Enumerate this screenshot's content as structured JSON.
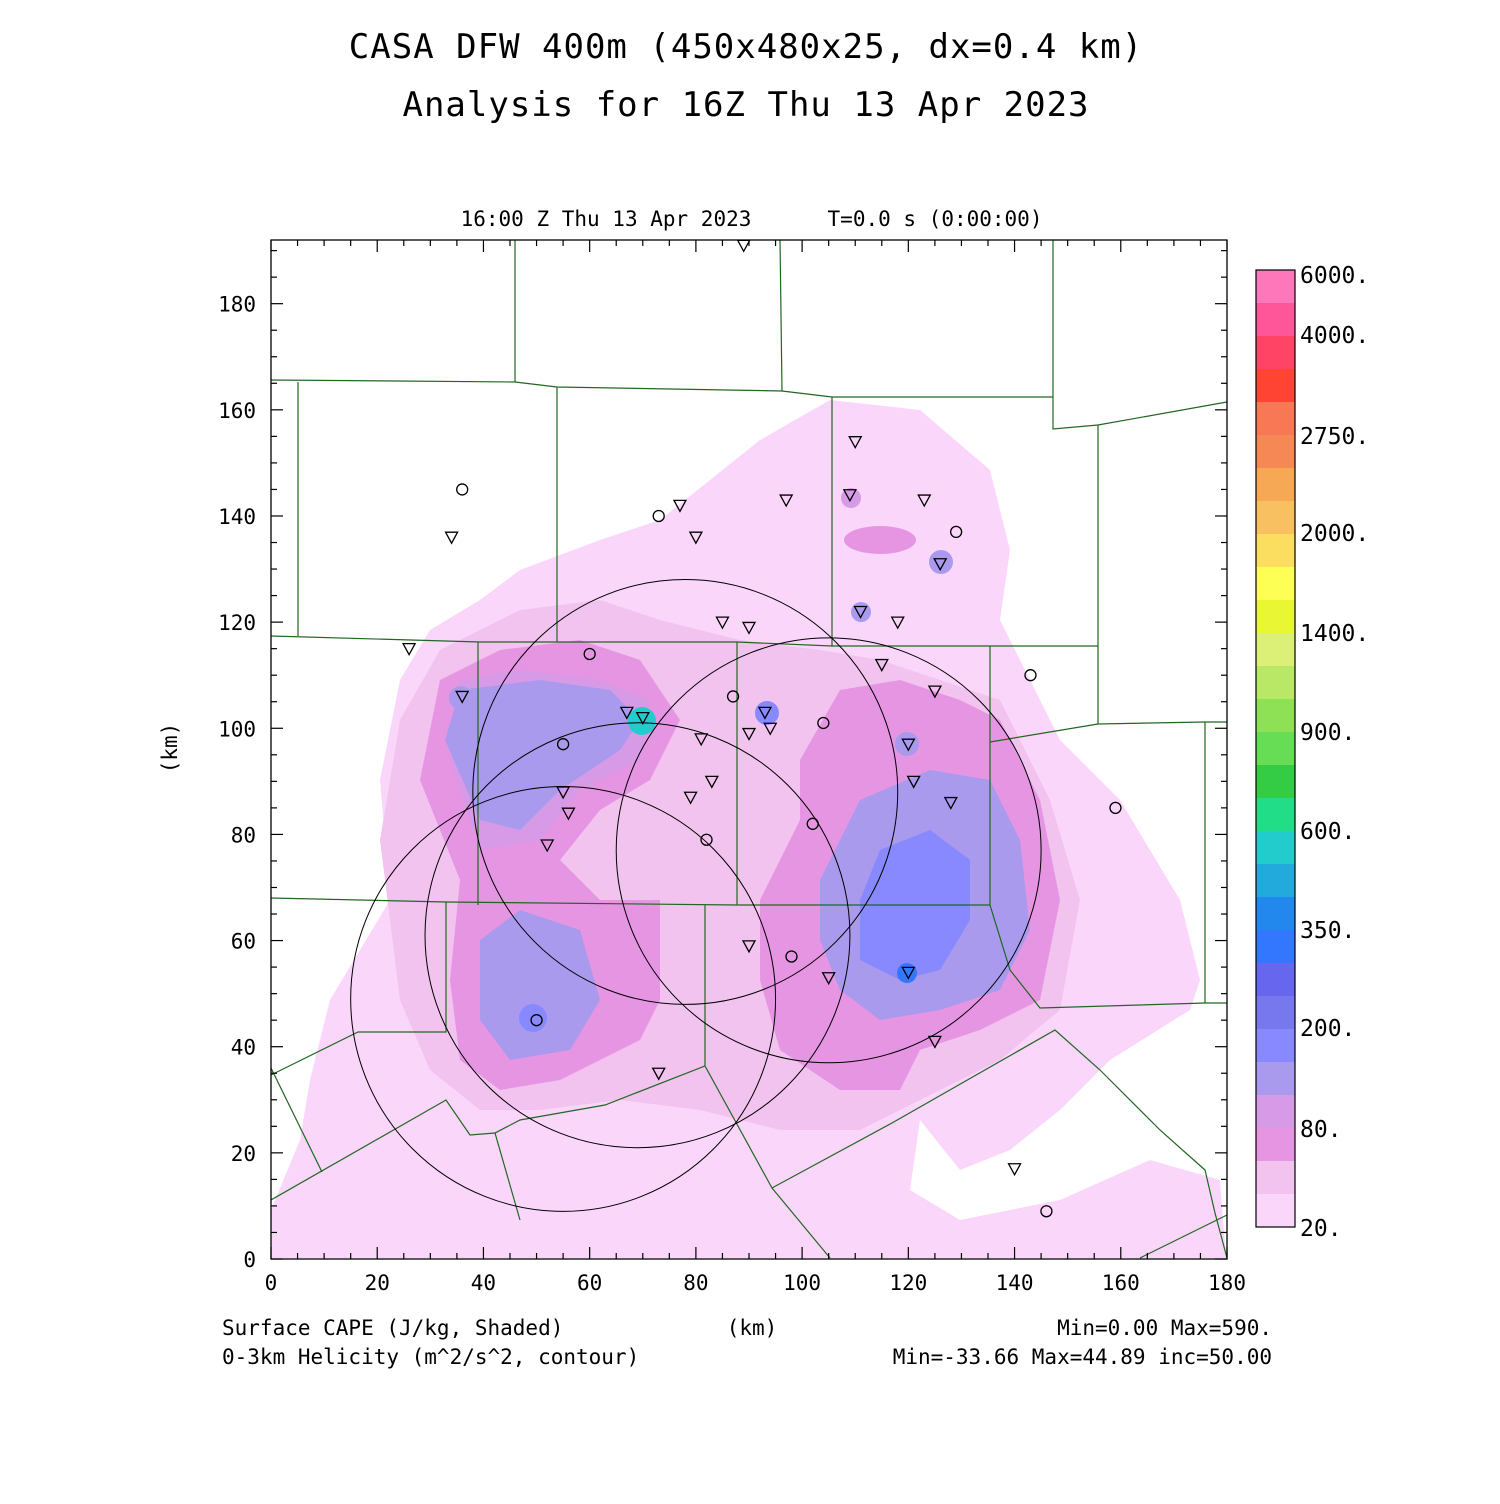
{
  "title": {
    "line1": "CASA DFW 400m (450x480x25, dx=0.4 km)",
    "line2": "Analysis for 16Z Thu 13 Apr 2023"
  },
  "subtitle": {
    "valid_time": "16:00 Z Thu 13 Apr 2023",
    "elapsed": "T=0.0 s (0:00:00)"
  },
  "axes": {
    "xlabel": "(km)",
    "ylabel": "(km)",
    "xlim": [
      0,
      180
    ],
    "ylim": [
      0,
      192
    ],
    "xticks": [
      "0",
      "20",
      "40",
      "60",
      "80",
      "100",
      "120",
      "140",
      "160",
      "180"
    ],
    "yticks": [
      "0",
      "20",
      "40",
      "60",
      "80",
      "100",
      "120",
      "140",
      "160",
      "180"
    ]
  },
  "colorbar": {
    "labels": [
      "6000.",
      "4000.",
      "2750.",
      "2000.",
      "1400.",
      "900.",
      "600.",
      "350.",
      "200.",
      "80.",
      "20."
    ],
    "colors": [
      "#ff77bb",
      "#ff5599",
      "#ff4466",
      "#ff4433",
      "#f87755",
      "#f58855",
      "#f6a855",
      "#f8c060",
      "#fbdd60",
      "#fdff55",
      "#e8f633",
      "#dcef77",
      "#b8e866",
      "#8ee055",
      "#66dd55",
      "#33cc44",
      "#22dd88",
      "#22cccc",
      "#22aadd",
      "#2288ee",
      "#3377ff",
      "#6666ee",
      "#7777ee",
      "#8888ff",
      "#a99aee",
      "#d69ae6",
      "#e695e3",
      "#f2c3ef",
      "#fbd6fb"
    ]
  },
  "footer": {
    "field1": "Surface CAPE (J/kg, Shaded)",
    "field2": "0-3km Helicity (m^2/s^2, contour)",
    "x_unit": "(km)",
    "range1": "Min=0.00 Max=590.",
    "range2": "Min=-33.66 Max=44.89 inc=50.00"
  },
  "radar_rings": [
    {
      "cx": 78,
      "cy": 88,
      "r": 40
    },
    {
      "cx": 105,
      "cy": 77,
      "r": 40
    },
    {
      "cx": 69,
      "cy": 61,
      "r": 40
    },
    {
      "cx": 55,
      "cy": 49,
      "r": 40
    }
  ],
  "stations_triangle": [
    [
      89,
      191
    ],
    [
      110,
      154
    ],
    [
      109,
      144
    ],
    [
      123,
      143
    ],
    [
      97,
      143
    ],
    [
      77,
      142
    ],
    [
      80,
      136
    ],
    [
      34,
      136
    ],
    [
      126,
      131
    ],
    [
      111,
      122
    ],
    [
      118,
      120
    ],
    [
      85,
      120
    ],
    [
      90,
      119
    ],
    [
      26,
      115
    ],
    [
      115,
      112
    ],
    [
      125,
      107
    ],
    [
      36,
      106
    ],
    [
      67,
      103
    ],
    [
      70,
      102
    ],
    [
      93,
      103
    ],
    [
      94,
      100
    ],
    [
      90,
      99
    ],
    [
      81,
      98
    ],
    [
      120,
      97
    ],
    [
      55,
      88
    ],
    [
      79,
      87
    ],
    [
      83,
      90
    ],
    [
      121,
      90
    ],
    [
      128,
      86
    ],
    [
      56,
      84
    ],
    [
      52,
      78
    ],
    [
      90,
      59
    ],
    [
      105,
      53
    ],
    [
      120,
      54
    ],
    [
      125,
      41
    ],
    [
      73,
      35
    ],
    [
      140,
      17
    ]
  ],
  "stations_circle": [
    [
      36,
      145
    ],
    [
      73,
      140
    ],
    [
      129,
      137
    ],
    [
      60,
      114
    ],
    [
      143,
      110
    ],
    [
      87,
      106
    ],
    [
      55,
      97
    ],
    [
      104,
      101
    ],
    [
      102,
      82
    ],
    [
      82,
      79
    ],
    [
      159,
      85
    ],
    [
      98,
      57
    ],
    [
      50,
      45
    ],
    [
      146,
      9
    ]
  ]
}
